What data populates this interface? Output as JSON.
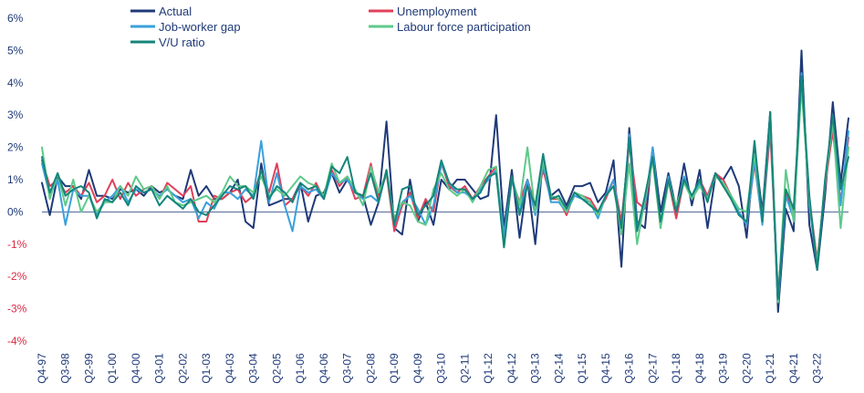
{
  "chart_data": {
    "type": "line",
    "start_quarter": "Q4-97",
    "x_tick_labels": [
      "Q4-97",
      "Q3-98",
      "Q2-99",
      "Q1-00",
      "Q4-00",
      "Q3-01",
      "Q2-02",
      "Q1-03",
      "Q4-03",
      "Q3-04",
      "Q2-05",
      "Q1-06",
      "Q4-06",
      "Q3-07",
      "Q2-08",
      "Q1-09",
      "Q4-09",
      "Q3-10",
      "Q2-11",
      "Q1-12",
      "Q4-12",
      "Q3-13",
      "Q2-14",
      "Q1-15",
      "Q4-15",
      "Q3-16",
      "Q2-17",
      "Q1-18",
      "Q4-18",
      "Q3-19",
      "Q2-20",
      "Q1-21",
      "Q4-21",
      "Q3-22"
    ],
    "y_ticks": [
      "6%",
      "5%",
      "4%",
      "3%",
      "2%",
      "1%",
      "0%",
      "-1%",
      "-2%",
      "-3%",
      "-4%"
    ],
    "ylim": [
      -4,
      6
    ],
    "legend_placement": "top",
    "series": [
      {
        "name": "Actual",
        "color": "#1f3a78",
        "values": [
          0.9,
          -0.1,
          1.1,
          0.8,
          0.8,
          0.4,
          1.3,
          0.5,
          0.5,
          0.4,
          0.7,
          0.6,
          0.7,
          0.5,
          0.8,
          0.6,
          0.7,
          0.5,
          0.4,
          1.3,
          0.5,
          0.8,
          0.4,
          0.4,
          0.6,
          1.0,
          -0.3,
          -0.5,
          1.5,
          0.2,
          0.3,
          0.4,
          0.4,
          0.9,
          -0.3,
          0.5,
          0.6,
          1.2,
          0.6,
          1.0,
          0.6,
          0.5,
          -0.4,
          0.3,
          2.8,
          -0.5,
          -0.7,
          1.0,
          -0.3,
          0.3,
          -0.4,
          1.0,
          0.7,
          1.0,
          1.0,
          0.7,
          0.4,
          0.5,
          3.0,
          -0.5,
          1.3,
          -0.8,
          1.0,
          -1.0,
          1.7,
          0.5,
          0.7,
          0.2,
          0.8,
          0.8,
          0.9,
          0.3,
          0.6,
          1.6,
          -1.7,
          2.6,
          -0.3,
          -0.5,
          2.0,
          0.0,
          1.2,
          0.1,
          1.5,
          0.2,
          1.3,
          -0.5,
          1.1,
          1.0,
          1.4,
          0.8,
          -0.8,
          2.0,
          0.0,
          3.1,
          -3.1,
          0.1,
          -0.6,
          5.0,
          -0.4,
          -1.8,
          0.5,
          3.4,
          0.9,
          2.9
        ]
      },
      {
        "name": "Unemployment",
        "color": "#e0405a",
        "values": [
          1.6,
          0.8,
          1.0,
          0.6,
          0.8,
          0.5,
          0.9,
          0.3,
          0.5,
          1.0,
          0.4,
          0.9,
          0.5,
          0.7,
          0.8,
          0.4,
          0.9,
          0.7,
          0.5,
          0.8,
          -0.3,
          -0.3,
          0.5,
          0.4,
          0.6,
          0.7,
          0.3,
          0.5,
          1.3,
          0.6,
          1.5,
          0.2,
          0.4,
          0.8,
          0.5,
          0.9,
          0.4,
          1.3,
          0.8,
          1.1,
          0.4,
          0.5,
          1.5,
          0.4,
          1.2,
          -0.6,
          0.2,
          0.6,
          -0.2,
          0.4,
          0.0,
          1.5,
          0.8,
          0.6,
          0.8,
          0.4,
          0.8,
          1.1,
          1.4,
          -1.0,
          1.0,
          0.3,
          1.0,
          0.2,
          1.3,
          0.4,
          0.4,
          -0.1,
          0.6,
          0.5,
          0.4,
          0.0,
          0.4,
          1.0,
          -0.3,
          2.1,
          0.3,
          0.1,
          1.8,
          -0.4,
          1.0,
          -0.2,
          1.0,
          0.4,
          1.0,
          0.5,
          1.2,
          1.0,
          0.5,
          0.0,
          -0.4,
          1.5,
          -0.3,
          2.5,
          -2.6,
          0.6,
          0.0,
          4.0,
          0.4,
          -1.5,
          0.8,
          2.5,
          0.3,
          2.3
        ]
      },
      {
        "name": "Job-worker gap",
        "color": "#3aa0dc",
        "values": [
          1.5,
          0.5,
          1.0,
          -0.4,
          0.7,
          0.5,
          0.5,
          -0.1,
          0.3,
          0.5,
          0.8,
          0.3,
          0.7,
          0.6,
          0.7,
          0.5,
          0.7,
          0.5,
          0.3,
          0.4,
          -0.2,
          0.3,
          0.1,
          0.6,
          0.6,
          0.4,
          0.7,
          0.5,
          2.2,
          0.3,
          1.2,
          0.2,
          -0.6,
          0.8,
          0.6,
          0.7,
          0.4,
          1.2,
          0.9,
          1.0,
          0.6,
          0.4,
          0.5,
          0.3,
          1.3,
          -0.4,
          0.3,
          0.5,
          0.1,
          -0.4,
          0.2,
          1.5,
          0.9,
          0.6,
          0.6,
          0.4,
          0.7,
          1.0,
          1.3,
          -0.7,
          1.0,
          0.0,
          1.0,
          -0.1,
          1.5,
          0.3,
          0.3,
          0.0,
          0.5,
          0.4,
          0.3,
          -0.2,
          0.5,
          1.0,
          -0.6,
          2.4,
          -0.5,
          0.2,
          2.0,
          -0.5,
          1.1,
          0.0,
          1.1,
          0.4,
          0.9,
          0.4,
          1.2,
          0.8,
          0.5,
          0.0,
          -0.4,
          1.6,
          -0.4,
          2.9,
          -2.8,
          0.5,
          -0.2,
          4.3,
          0.2,
          -1.7,
          0.9,
          2.8,
          0.2,
          2.5
        ]
      },
      {
        "name": "Labour force participation",
        "color": "#5ec98a",
        "values": [
          2.0,
          0.4,
          1.2,
          0.2,
          1.0,
          0.0,
          0.5,
          0.0,
          0.3,
          0.3,
          0.8,
          0.5,
          1.1,
          0.7,
          0.8,
          0.4,
          0.8,
          0.3,
          0.2,
          0.3,
          0.4,
          0.5,
          0.3,
          0.6,
          1.1,
          0.8,
          0.8,
          0.6,
          1.1,
          0.5,
          0.7,
          0.5,
          0.8,
          1.1,
          0.9,
          0.8,
          0.5,
          1.5,
          0.9,
          1.1,
          0.7,
          0.2,
          1.4,
          0.6,
          1.2,
          -0.2,
          0.3,
          0.2,
          -0.3,
          -0.4,
          0.7,
          1.2,
          0.7,
          0.5,
          0.7,
          0.3,
          0.8,
          1.3,
          1.4,
          -1.1,
          1.1,
          0.2,
          2.0,
          0.0,
          1.6,
          0.5,
          0.4,
          0.0,
          0.6,
          0.5,
          0.3,
          -0.1,
          0.5,
          0.8,
          -0.7,
          1.5,
          -1.0,
          0.4,
          1.6,
          -0.5,
          0.9,
          0.2,
          0.9,
          0.4,
          0.8,
          0.4,
          1.1,
          0.9,
          0.5,
          0.1,
          0.0,
          1.8,
          -0.2,
          3.0,
          -2.8,
          1.3,
          -0.3,
          3.9,
          0.3,
          -1.6,
          0.9,
          2.8,
          -0.5,
          2.0
        ]
      },
      {
        "name": "V/U ratio",
        "color": "#14857a",
        "values": [
          1.7,
          0.6,
          1.2,
          0.5,
          0.7,
          0.8,
          0.6,
          -0.2,
          0.4,
          0.3,
          0.6,
          0.2,
          0.8,
          0.6,
          0.7,
          0.2,
          0.5,
          0.3,
          0.1,
          0.4,
          0.0,
          -0.1,
          0.2,
          0.5,
          0.8,
          0.7,
          0.8,
          0.4,
          1.3,
          0.4,
          0.8,
          0.6,
          0.3,
          0.9,
          0.7,
          0.8,
          0.4,
          1.4,
          1.2,
          1.7,
          0.6,
          0.5,
          1.2,
          0.3,
          1.3,
          -0.4,
          0.7,
          0.8,
          -0.1,
          0.2,
          0.5,
          1.6,
          0.9,
          0.7,
          0.7,
          0.4,
          0.6,
          1.1,
          1.2,
          -1.1,
          1.1,
          -0.1,
          0.8,
          0.2,
          1.8,
          0.4,
          0.5,
          0.1,
          0.6,
          0.4,
          0.2,
          0.0,
          0.5,
          0.8,
          -0.5,
          2.3,
          -0.6,
          0.5,
          1.7,
          -0.3,
          1.0,
          0.0,
          1.0,
          0.5,
          1.0,
          0.3,
          1.2,
          0.8,
          0.4,
          -0.1,
          -0.3,
          2.2,
          -0.3,
          3.1,
          -2.7,
          0.7,
          0.1,
          4.2,
          0.5,
          -1.8,
          1.0,
          3.0,
          0.7,
          1.7
        ]
      }
    ]
  }
}
